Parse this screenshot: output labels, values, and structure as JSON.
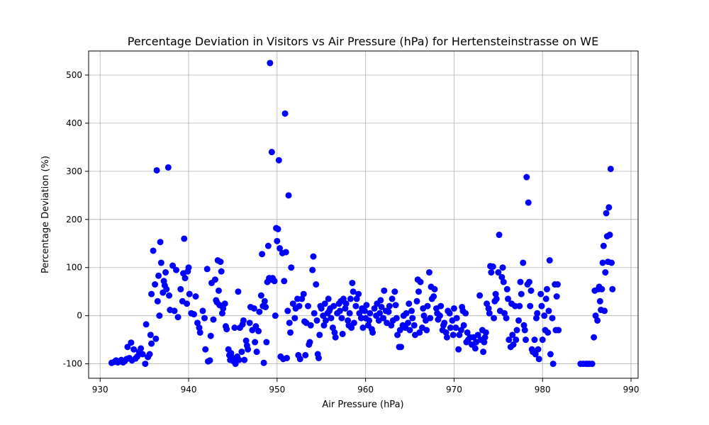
{
  "chart_data": {
    "type": "scatter",
    "title": "Percentage Deviation in Visitors vs Air Pressure (hPa) for Hertensteinstrasse on WE",
    "xlabel": "Air Pressure (hPa)",
    "ylabel": "Percentage Deviation (%)",
    "xlim": [
      928.7,
      990.8
    ],
    "ylim": [
      -130,
      550
    ],
    "xticks": [
      930,
      940,
      950,
      960,
      970,
      980,
      990
    ],
    "yticks": [
      -100,
      0,
      100,
      200,
      300,
      400,
      500
    ],
    "grid": true,
    "color": "#0000ff",
    "points": [
      [
        931.3,
        -98
      ],
      [
        931.6,
        -96
      ],
      [
        931.8,
        -93
      ],
      [
        932.0,
        -97
      ],
      [
        932.2,
        -95
      ],
      [
        932.4,
        -92
      ],
      [
        932.6,
        -97
      ],
      [
        932.8,
        -94
      ],
      [
        933.0,
        -90
      ],
      [
        933.1,
        -65
      ],
      [
        933.3,
        -88
      ],
      [
        933.5,
        -56
      ],
      [
        933.6,
        -93
      ],
      [
        933.8,
        -70
      ],
      [
        934.0,
        -89
      ],
      [
        934.2,
        -85
      ],
      [
        934.4,
        -75
      ],
      [
        934.6,
        -68
      ],
      [
        934.8,
        -80
      ],
      [
        935.1,
        -100
      ],
      [
        935.2,
        -18
      ],
      [
        935.4,
        -86
      ],
      [
        935.6,
        -80
      ],
      [
        935.7,
        -40
      ],
      [
        935.8,
        -58
      ],
      [
        935.8,
        45
      ],
      [
        936.0,
        135
      ],
      [
        936.2,
        65
      ],
      [
        936.3,
        -48
      ],
      [
        936.4,
        302
      ],
      [
        936.5,
        30
      ],
      [
        936.6,
        83
      ],
      [
        936.7,
        0
      ],
      [
        936.8,
        153
      ],
      [
        936.9,
        110
      ],
      [
        937.1,
        48
      ],
      [
        937.2,
        72
      ],
      [
        937.3,
        63
      ],
      [
        937.4,
        90
      ],
      [
        937.5,
        55
      ],
      [
        937.7,
        308
      ],
      [
        937.8,
        42
      ],
      [
        937.9,
        12
      ],
      [
        938.2,
        104
      ],
      [
        938.4,
        10
      ],
      [
        938.6,
        95
      ],
      [
        938.8,
        -3
      ],
      [
        939.1,
        55
      ],
      [
        939.3,
        30
      ],
      [
        939.4,
        88
      ],
      [
        939.5,
        160
      ],
      [
        939.6,
        78
      ],
      [
        939.8,
        25
      ],
      [
        939.9,
        92
      ],
      [
        940.0,
        100
      ],
      [
        940.1,
        45
      ],
      [
        940.3,
        5
      ],
      [
        940.6,
        3
      ],
      [
        940.8,
        40
      ],
      [
        941.0,
        -15
      ],
      [
        941.2,
        -25
      ],
      [
        941.3,
        -35
      ],
      [
        941.6,
        10
      ],
      [
        941.8,
        -5
      ],
      [
        941.9,
        -70
      ],
      [
        942.1,
        97
      ],
      [
        942.2,
        -95
      ],
      [
        942.4,
        -93
      ],
      [
        942.5,
        -42
      ],
      [
        942.6,
        68
      ],
      [
        942.8,
        -8
      ],
      [
        943.0,
        75
      ],
      [
        943.1,
        32
      ],
      [
        943.2,
        28
      ],
      [
        943.3,
        115
      ],
      [
        943.4,
        52
      ],
      [
        943.5,
        22
      ],
      [
        943.6,
        112
      ],
      [
        943.7,
        92
      ],
      [
        943.8,
        5
      ],
      [
        943.9,
        15
      ],
      [
        944.1,
        25
      ],
      [
        944.2,
        -22
      ],
      [
        944.3,
        -28
      ],
      [
        944.5,
        -70
      ],
      [
        944.6,
        -82
      ],
      [
        944.7,
        -92
      ],
      [
        944.8,
        -78
      ],
      [
        945.0,
        -88
      ],
      [
        945.1,
        -95
      ],
      [
        945.2,
        -25
      ],
      [
        945.3,
        -100
      ],
      [
        945.5,
        -85
      ],
      [
        945.6,
        50
      ],
      [
        945.7,
        -92
      ],
      [
        945.8,
        -25
      ],
      [
        946.0,
        -75
      ],
      [
        946.1,
        -18
      ],
      [
        946.2,
        -10
      ],
      [
        946.3,
        -92
      ],
      [
        946.5,
        -52
      ],
      [
        946.6,
        -62
      ],
      [
        946.7,
        -70
      ],
      [
        946.9,
        -15
      ],
      [
        947.0,
        18
      ],
      [
        947.2,
        -30
      ],
      [
        947.4,
        15
      ],
      [
        947.5,
        -55
      ],
      [
        947.6,
        -22
      ],
      [
        947.7,
        -75
      ],
      [
        947.9,
        -32
      ],
      [
        948.0,
        8
      ],
      [
        948.2,
        42
      ],
      [
        948.3,
        128
      ],
      [
        948.4,
        20
      ],
      [
        948.5,
        -98
      ],
      [
        948.6,
        30
      ],
      [
        948.7,
        18
      ],
      [
        948.8,
        -55
      ],
      [
        948.9,
        70
      ],
      [
        949.0,
        145
      ],
      [
        949.1,
        78
      ],
      [
        949.2,
        525
      ],
      [
        949.3,
        75
      ],
      [
        949.4,
        340
      ],
      [
        949.5,
        78
      ],
      [
        949.7,
        72
      ],
      [
        949.8,
        0
      ],
      [
        949.9,
        182
      ],
      [
        950.0,
        155
      ],
      [
        950.1,
        180
      ],
      [
        950.2,
        323
      ],
      [
        950.3,
        140
      ],
      [
        950.4,
        -85
      ],
      [
        950.6,
        130
      ],
      [
        950.7,
        -90
      ],
      [
        950.8,
        72
      ],
      [
        950.9,
        420
      ],
      [
        951.0,
        132
      ],
      [
        951.1,
        -88
      ],
      [
        951.2,
        10
      ],
      [
        951.3,
        250
      ],
      [
        951.4,
        -15
      ],
      [
        951.5,
        -35
      ],
      [
        951.6,
        100
      ],
      [
        951.8,
        25
      ],
      [
        952.0,
        -5
      ],
      [
        952.1,
        15
      ],
      [
        952.3,
        35
      ],
      [
        952.4,
        -82
      ],
      [
        952.5,
        20
      ],
      [
        952.6,
        -90
      ],
      [
        952.8,
        35
      ],
      [
        953.0,
        45
      ],
      [
        953.1,
        -12
      ],
      [
        953.2,
        -82
      ],
      [
        953.3,
        -15
      ],
      [
        953.5,
        20
      ],
      [
        953.6,
        -60
      ],
      [
        953.7,
        -55
      ],
      [
        953.8,
        -20
      ],
      [
        954.0,
        95
      ],
      [
        954.1,
        123
      ],
      [
        954.2,
        5
      ],
      [
        954.4,
        65
      ],
      [
        954.5,
        -10
      ],
      [
        954.6,
        -80
      ],
      [
        954.7,
        -88
      ],
      [
        954.8,
        -40
      ],
      [
        954.9,
        20
      ],
      [
        955.0,
        15
      ],
      [
        955.2,
        0
      ],
      [
        955.3,
        -20
      ],
      [
        955.4,
        25
      ],
      [
        955.5,
        -10
      ],
      [
        955.7,
        5
      ],
      [
        955.8,
        35
      ],
      [
        955.9,
        10
      ],
      [
        956.0,
        15
      ],
      [
        956.1,
        -5
      ],
      [
        956.3,
        -25
      ],
      [
        956.4,
        20
      ],
      [
        956.5,
        -35
      ],
      [
        956.6,
        -45
      ],
      [
        956.8,
        5
      ],
      [
        957.0,
        25
      ],
      [
        957.1,
        10
      ],
      [
        957.2,
        30
      ],
      [
        957.3,
        -5
      ],
      [
        957.4,
        -38
      ],
      [
        957.5,
        35
      ],
      [
        957.7,
        15
      ],
      [
        957.8,
        25
      ],
      [
        958.0,
        -10
      ],
      [
        958.1,
        -20
      ],
      [
        958.2,
        5
      ],
      [
        958.3,
        35
      ],
      [
        958.4,
        -25
      ],
      [
        958.5,
        68
      ],
      [
        958.6,
        50
      ],
      [
        958.7,
        -15
      ],
      [
        958.9,
        20
      ],
      [
        959.0,
        35
      ],
      [
        959.2,
        45
      ],
      [
        959.3,
        5
      ],
      [
        959.5,
        -5
      ],
      [
        959.6,
        15
      ],
      [
        959.7,
        -25
      ],
      [
        959.9,
        10
      ],
      [
        960.0,
        -5
      ],
      [
        960.1,
        22
      ],
      [
        960.3,
        -20
      ],
      [
        960.4,
        -10
      ],
      [
        960.5,
        5
      ],
      [
        960.7,
        -28
      ],
      [
        960.8,
        -35
      ],
      [
        961.0,
        15
      ],
      [
        961.2,
        0
      ],
      [
        961.3,
        25
      ],
      [
        961.5,
        -10
      ],
      [
        961.6,
        5
      ],
      [
        961.7,
        32
      ],
      [
        961.8,
        18
      ],
      [
        962.0,
        -5
      ],
      [
        962.1,
        52
      ],
      [
        962.3,
        10
      ],
      [
        962.4,
        -15
      ],
      [
        962.6,
        8
      ],
      [
        962.7,
        20
      ],
      [
        962.9,
        -20
      ],
      [
        963.0,
        35
      ],
      [
        963.1,
        -10
      ],
      [
        963.3,
        50
      ],
      [
        963.4,
        22
      ],
      [
        963.5,
        -5
      ],
      [
        963.6,
        -40
      ],
      [
        963.8,
        -65
      ],
      [
        963.9,
        -30
      ],
      [
        964.0,
        -65
      ],
      [
        964.2,
        -20
      ],
      [
        964.3,
        0
      ],
      [
        964.5,
        -25
      ],
      [
        964.6,
        5
      ],
      [
        964.8,
        -15
      ],
      [
        964.9,
        25
      ],
      [
        965.0,
        -30
      ],
      [
        965.2,
        10
      ],
      [
        965.3,
        -5
      ],
      [
        965.5,
        -20
      ],
      [
        965.6,
        -40
      ],
      [
        965.8,
        30
      ],
      [
        965.9,
        75
      ],
      [
        966.0,
        50
      ],
      [
        966.1,
        -35
      ],
      [
        966.2,
        70
      ],
      [
        966.4,
        -25
      ],
      [
        966.5,
        15
      ],
      [
        966.6,
        0
      ],
      [
        966.8,
        -10
      ],
      [
        966.9,
        -30
      ],
      [
        967.0,
        20
      ],
      [
        967.2,
        90
      ],
      [
        967.3,
        -5
      ],
      [
        967.4,
        60
      ],
      [
        967.5,
        35
      ],
      [
        967.7,
        40
      ],
      [
        967.8,
        55
      ],
      [
        968.0,
        15
      ],
      [
        968.1,
        5
      ],
      [
        968.2,
        -8
      ],
      [
        968.4,
        0
      ],
      [
        968.5,
        20
      ],
      [
        968.7,
        -30
      ],
      [
        968.8,
        -20
      ],
      [
        968.9,
        -15
      ],
      [
        969.1,
        -35
      ],
      [
        969.2,
        -45
      ],
      [
        969.3,
        10
      ],
      [
        969.5,
        5
      ],
      [
        969.6,
        -25
      ],
      [
        969.8,
        -10
      ],
      [
        969.9,
        -40
      ],
      [
        970.0,
        15
      ],
      [
        970.2,
        -25
      ],
      [
        970.3,
        -5
      ],
      [
        970.5,
        -70
      ],
      [
        970.6,
        -40
      ],
      [
        970.8,
        -30
      ],
      [
        970.9,
        18
      ],
      [
        971.0,
        10
      ],
      [
        971.1,
        -20
      ],
      [
        971.3,
        5
      ],
      [
        971.4,
        -55
      ],
      [
        971.5,
        -35
      ],
      [
        971.6,
        -50
      ],
      [
        971.8,
        -45
      ],
      [
        972.0,
        -60
      ],
      [
        972.2,
        -45
      ],
      [
        972.4,
        -68
      ],
      [
        972.5,
        -55
      ],
      [
        972.7,
        -40
      ],
      [
        972.9,
        42
      ],
      [
        973.0,
        -50
      ],
      [
        973.2,
        -30
      ],
      [
        973.3,
        -75
      ],
      [
        973.4,
        -55
      ],
      [
        973.5,
        -45
      ],
      [
        973.6,
        -35
      ],
      [
        973.7,
        25
      ],
      [
        973.9,
        15
      ],
      [
        974.0,
        5
      ],
      [
        974.1,
        103
      ],
      [
        974.2,
        90
      ],
      [
        974.4,
        102
      ],
      [
        974.5,
        -5
      ],
      [
        974.6,
        30
      ],
      [
        974.7,
        45
      ],
      [
        974.8,
        35
      ],
      [
        975.0,
        90
      ],
      [
        975.1,
        168
      ],
      [
        975.2,
        10
      ],
      [
        975.4,
        80
      ],
      [
        975.5,
        100
      ],
      [
        975.6,
        70
      ],
      [
        975.7,
        5
      ],
      [
        975.9,
        -5
      ],
      [
        976.0,
        55
      ],
      [
        976.1,
        35
      ],
      [
        976.2,
        -50
      ],
      [
        976.4,
        -65
      ],
      [
        976.5,
        25
      ],
      [
        976.6,
        -40
      ],
      [
        976.7,
        -60
      ],
      [
        976.9,
        20
      ],
      [
        977.0,
        -50
      ],
      [
        977.1,
        -30
      ],
      [
        977.3,
        -10
      ],
      [
        977.4,
        20
      ],
      [
        977.5,
        70
      ],
      [
        977.6,
        45
      ],
      [
        977.8,
        110
      ],
      [
        977.9,
        -20
      ],
      [
        978.0,
        -30
      ],
      [
        978.1,
        -50
      ],
      [
        978.2,
        288
      ],
      [
        978.3,
        65
      ],
      [
        978.4,
        235
      ],
      [
        978.5,
        70
      ],
      [
        978.6,
        20
      ],
      [
        978.7,
        52
      ],
      [
        978.8,
        -70
      ],
      [
        978.9,
        -75
      ],
      [
        979.1,
        -50
      ],
      [
        979.2,
        -80
      ],
      [
        979.3,
        -5
      ],
      [
        979.4,
        5
      ],
      [
        979.5,
        -70
      ],
      [
        979.6,
        -90
      ],
      [
        979.8,
        45
      ],
      [
        979.9,
        20
      ],
      [
        980.0,
        -50
      ],
      [
        980.2,
        0
      ],
      [
        980.3,
        -30
      ],
      [
        980.4,
        35
      ],
      [
        980.5,
        55
      ],
      [
        980.6,
        -35
      ],
      [
        980.7,
        10
      ],
      [
        980.8,
        115
      ],
      [
        980.9,
        -80
      ],
      [
        981.1,
        -5
      ],
      [
        981.2,
        -100
      ],
      [
        981.4,
        65
      ],
      [
        981.5,
        -30
      ],
      [
        981.6,
        40
      ],
      [
        981.7,
        65
      ],
      [
        981.8,
        -30
      ],
      [
        984.3,
        -100
      ],
      [
        984.6,
        -100
      ],
      [
        984.9,
        -100
      ],
      [
        985.1,
        -100
      ],
      [
        985.3,
        -100
      ],
      [
        985.6,
        -100
      ],
      [
        985.8,
        -45
      ],
      [
        985.9,
        52
      ],
      [
        986.0,
        0
      ],
      [
        986.2,
        -10
      ],
      [
        986.3,
        55
      ],
      [
        986.4,
        60
      ],
      [
        986.5,
        30
      ],
      [
        986.6,
        12
      ],
      [
        986.7,
        55
      ],
      [
        986.8,
        110
      ],
      [
        986.9,
        145
      ],
      [
        987.0,
        10
      ],
      [
        987.1,
        90
      ],
      [
        987.2,
        213
      ],
      [
        987.3,
        165
      ],
      [
        987.4,
        112
      ],
      [
        987.5,
        225
      ],
      [
        987.6,
        168
      ],
      [
        987.7,
        305
      ],
      [
        987.8,
        110
      ],
      [
        987.9,
        55
      ]
    ]
  }
}
